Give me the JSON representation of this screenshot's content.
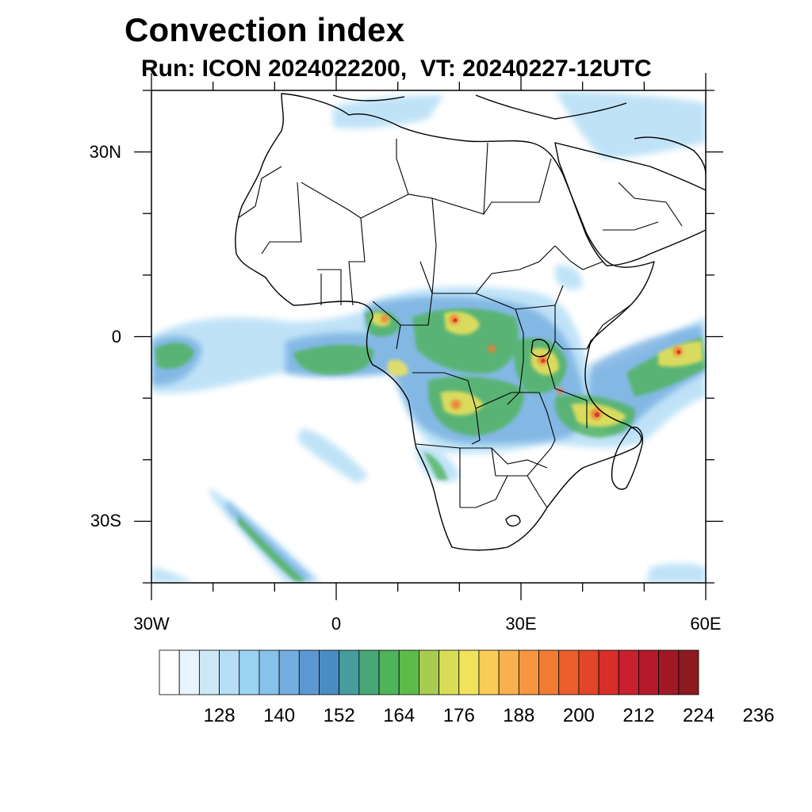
{
  "title": "Convection index",
  "subtitle": "Run: ICON 2024022200,  VT: 20240227-12UTC",
  "map": {
    "projection": "equirectangular",
    "lon_range": [
      -30,
      60
    ],
    "lat_range": [
      -40,
      40
    ],
    "x_ticks": [
      {
        "lon": -30,
        "label": "30W"
      },
      {
        "lon": 0,
        "label": "0"
      },
      {
        "lon": 30,
        "label": "30E"
      },
      {
        "lon": 60,
        "label": "60E"
      }
    ],
    "y_ticks": [
      {
        "lat": 30,
        "label": "30N"
      },
      {
        "lat": 0,
        "label": "0"
      },
      {
        "lat": -30,
        "label": "30S"
      }
    ],
    "minor_tick_step": 10
  },
  "colorbar": {
    "colors": [
      "#ffffff",
      "#e8f4fb",
      "#cce8f7",
      "#b5def6",
      "#9bd3f3",
      "#86c2ea",
      "#74aee0",
      "#5c99d2",
      "#4a8dc3",
      "#459d9d",
      "#48a777",
      "#4fb35a",
      "#5dbb4a",
      "#a8cc4f",
      "#d8dd55",
      "#f0e35a",
      "#f9cc58",
      "#f9b14d",
      "#f69640",
      "#f27b34",
      "#ec5e2b",
      "#e34528",
      "#d82e2a",
      "#c8202e",
      "#b51a2b",
      "#a11927",
      "#8c1a1f"
    ],
    "labels": [
      "128",
      "140",
      "152",
      "164",
      "176",
      "188",
      "200",
      "212",
      "224",
      "236"
    ],
    "label_boundary_index": [
      3,
      6,
      9,
      12,
      15,
      18,
      21,
      24,
      27,
      30
    ]
  }
}
